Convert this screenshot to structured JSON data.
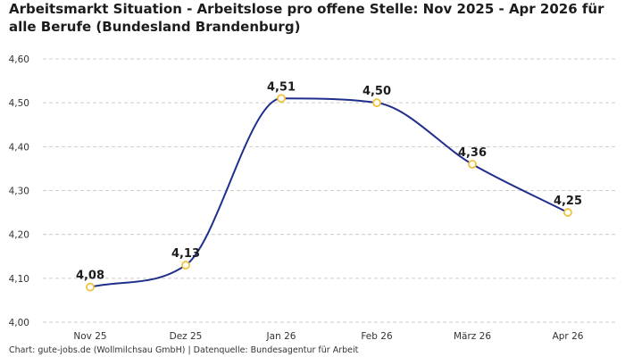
{
  "chart_data": {
    "type": "line",
    "title": "Arbeitsmarkt Situation - Arbeitslose pro offene Stelle: Nov 2025 - Apr 2026 für alle Berufe (Bundesland Brandenburg)",
    "categories": [
      "Nov 25",
      "Dez 25",
      "Jan 26",
      "Feb 26",
      "März 26",
      "Apr 26"
    ],
    "values": [
      4.08,
      4.13,
      4.51,
      4.5,
      4.36,
      4.25
    ],
    "data_labels": [
      "4,08",
      "4,13",
      "4,51",
      "4,50",
      "4,36",
      "4,25"
    ],
    "y_ticks": [
      4.0,
      4.1,
      4.2,
      4.3,
      4.4,
      4.5,
      4.6
    ],
    "y_tick_labels": [
      "4,00",
      "4,10",
      "4,20",
      "4,30",
      "4,40",
      "4,50",
      "4,60"
    ],
    "ylim": [
      4.0,
      4.6
    ],
    "xlabel": "",
    "ylabel": "",
    "grid": "horizontal dashed",
    "legend": "none",
    "line_color": "#1f2f8c",
    "marker_color": "#f2c23a",
    "grid_color": "#cccccc"
  },
  "footer": "Chart: gute-jobs.de (Wollmilchsau GmbH) | Datenquelle: Bundesagentur für Arbeit"
}
